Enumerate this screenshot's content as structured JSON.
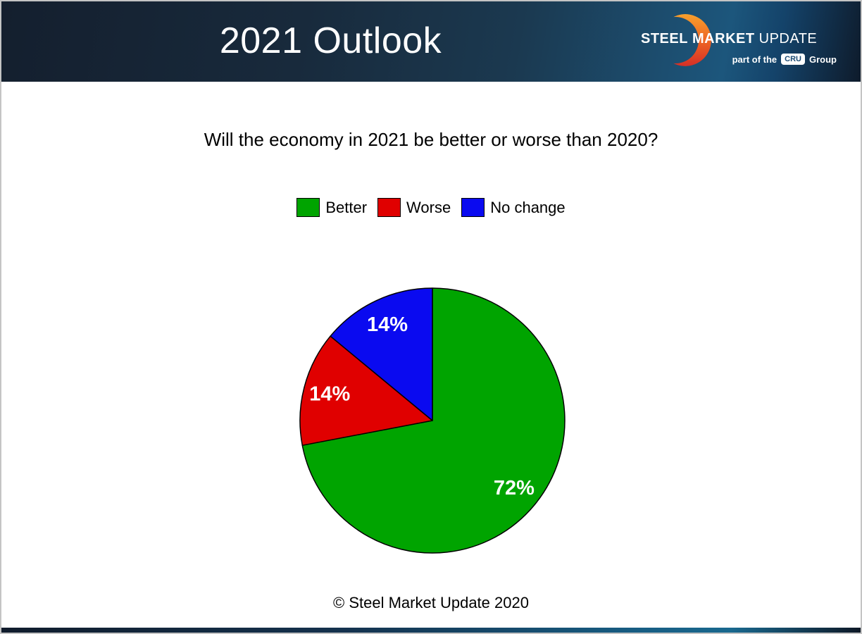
{
  "slide": {
    "title": "2021 Outlook",
    "question": "Will the economy in 2021 be better or worse than 2020?",
    "copyright": "© Steel Market Update 2020"
  },
  "logo": {
    "steel": "STEEL",
    "market": "MARKET",
    "update": "UPDATE",
    "tagline_prefix": "part of the",
    "cru_badge": "CRU",
    "tagline_suffix": "Group"
  },
  "chart_data": {
    "type": "pie",
    "title": "Will the economy in 2021 be better or worse than 2020?",
    "categories": [
      "Better",
      "Worse",
      "No change"
    ],
    "values": [
      72,
      14,
      14
    ],
    "labels": [
      "72%",
      "14%",
      "14%"
    ],
    "unit": "percent",
    "colors": [
      "#00A400",
      "#E00000",
      "#0A0AF0"
    ],
    "slice_outline": "#000000",
    "label_color": "#FFFFFF",
    "start_angle_deg": 0,
    "direction": "clockwise",
    "legend_position": "top"
  },
  "theme": {
    "header_gradient_left": "#141F2E",
    "header_gradient_blue": "#1C567C",
    "header_gradient_right": "#0E1B2B",
    "crescent_top": "#F7A02C",
    "crescent_mid": "#EE6623",
    "crescent_bottom": "#D52F27",
    "slide_border": "#C4C4C4"
  }
}
